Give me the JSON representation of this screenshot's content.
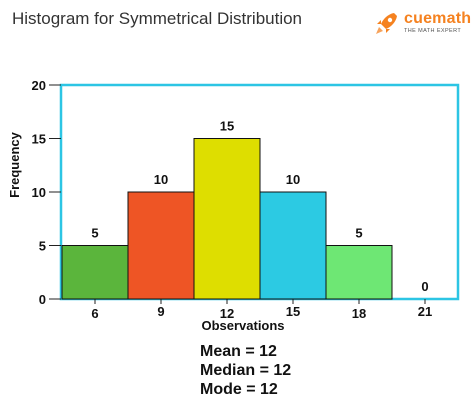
{
  "title": "Histogram for Symmetrical Distribution",
  "logo": {
    "word": "cuemath",
    "tagline": "THE MATH EXPERT",
    "color": "#f58220"
  },
  "stats": [
    "Mean = 12",
    "Median = 12",
    "Mode = 12"
  ],
  "chart_data": {
    "type": "bar",
    "title": "Histogram for Symmetrical Distribution",
    "xlabel": "Observations",
    "ylabel": "Frequency",
    "categories": [
      "6",
      "9",
      "12",
      "15",
      "18",
      "21"
    ],
    "values": [
      5,
      10,
      15,
      10,
      5,
      0
    ],
    "colors": [
      "#5bb53c",
      "#ee5525",
      "#dede00",
      "#2ccae3",
      "#6ee774",
      "#ffffff"
    ],
    "ylim": [
      0,
      20
    ],
    "yticks": [
      0,
      5,
      10,
      15,
      20
    ],
    "frame_color": "#2cc5e4",
    "grid": false
  }
}
